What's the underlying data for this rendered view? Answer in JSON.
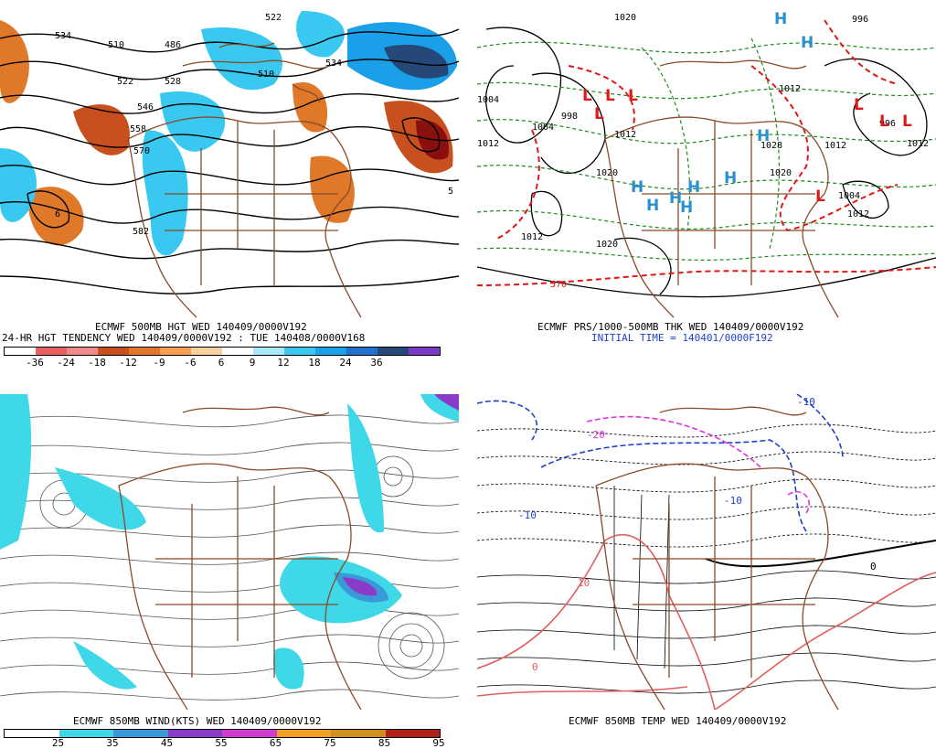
{
  "panels": {
    "p500": {
      "caption1": "ECMWF 500MB HGT WED 140409/0000V192",
      "caption2": "24-HR HGT TENDENCY WED 140409/0000V192 : TUE 140408/0000V168",
      "contour_labels": [
        "534",
        "510",
        "486",
        "522",
        "528",
        "546",
        "558",
        "570",
        "582",
        "534",
        "522",
        "510",
        "5",
        "6"
      ],
      "colorbar_ticks": [
        "-36",
        "-24",
        "-18",
        "-12",
        "-9",
        "-6",
        "6",
        "9",
        "12",
        "18",
        "24",
        "36"
      ],
      "colorbar_colors": [
        "#ffffff",
        "#e86060",
        "#f08a8a",
        "#c8501e",
        "#e0782a",
        "#f5a050",
        "#fbd0a0",
        "#ffffff",
        "#a8e8f8",
        "#38c8f0",
        "#1aa0e8",
        "#2070d0",
        "#264878",
        "#7a3cc8"
      ]
    },
    "pthk": {
      "caption1": "ECMWF PRS/1000-500MB THK WED 140409/0000V192",
      "caption2": "INITIAL TIME = 140401/0000F192",
      "isobar_labels": [
        "1020",
        "1004",
        "998",
        "1012",
        "1012",
        "1020",
        "1012",
        "1020",
        "1012",
        "1004",
        "996",
        "1012",
        "1028",
        "1004",
        "1012",
        "1020",
        "1012",
        "996"
      ],
      "thickness_labels": [
        "570"
      ],
      "high_symbols": [
        "H",
        "H",
        "H",
        "H",
        "H",
        "H",
        "H",
        "H",
        "H"
      ],
      "low_symbols": [
        "L",
        "L",
        "L",
        "L",
        "L",
        "L",
        "L",
        "L"
      ]
    },
    "pwind": {
      "caption1": "ECMWF 850MB WIND(KTS) WED 140409/0000V192",
      "colorbar_ticks": [
        "25",
        "35",
        "45",
        "55",
        "65",
        "75",
        "85",
        "95"
      ],
      "colorbar_colors": [
        "#ffffff",
        "#3fd8e8",
        "#3a9ad8",
        "#8a3cc8",
        "#d03cd0",
        "#f0a020",
        "#d09020",
        "#b02018"
      ]
    },
    "ptemp": {
      "caption1": "ECMWF 850MB TEMP WED 140409/0000V192",
      "contour_labels": [
        "-10",
        "-10",
        "-10",
        "-20",
        "0",
        "10",
        "0"
      ]
    }
  },
  "colors": {
    "coast": "#8b4a28",
    "contour": "#000000",
    "thickness": "#e01818",
    "isobar_green": "#1e8a1e",
    "high": "#2a90d0",
    "low": "#e01818",
    "isotach": "#3fd8e8",
    "temp_cold": "#1f3fd0",
    "temp_mag": "#e030e0",
    "temp_warm": "#e06060"
  }
}
